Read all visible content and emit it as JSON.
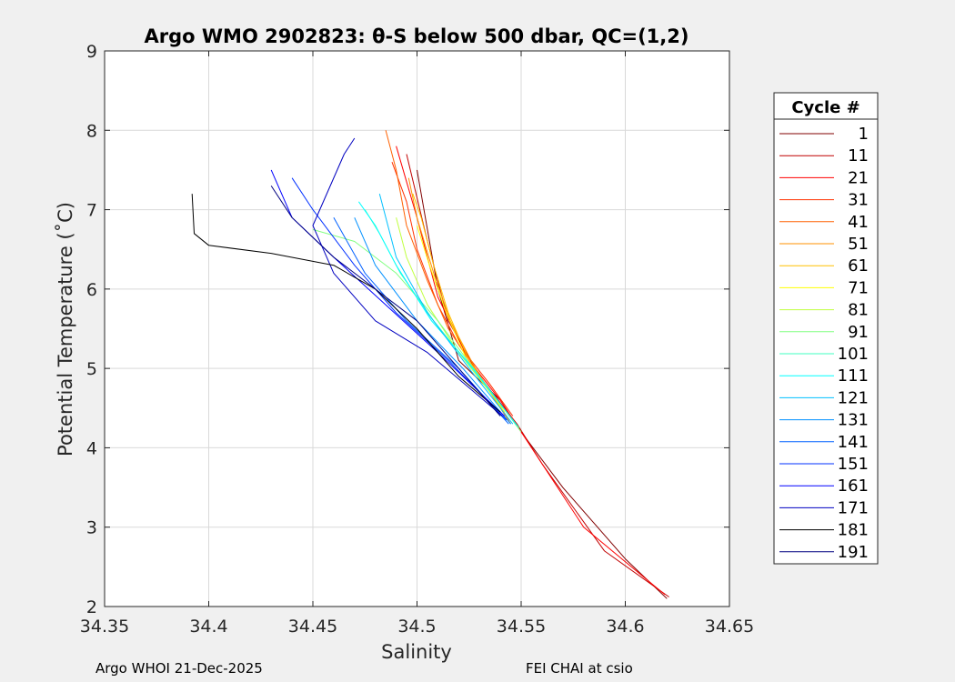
{
  "chart_data": {
    "type": "line",
    "title": "Argo WMO 2902823: θ-S below 500 dbar,  QC=(1,2)",
    "xlabel": "Salinity",
    "ylabel": "Potential Temperature (˚C)",
    "xlim": [
      34.35,
      34.65
    ],
    "ylim": [
      2,
      9
    ],
    "xticks": [
      "34.35",
      "34.4",
      "34.45",
      "34.5",
      "34.55",
      "34.6",
      "34.65"
    ],
    "yticks": [
      "2",
      "3",
      "4",
      "5",
      "6",
      "7",
      "8",
      "9"
    ],
    "grid": true,
    "legend_title": "Cycle #",
    "legend_position": "right",
    "series": [
      {
        "name": "1",
        "color": "#800000",
        "x": [
          34.62,
          34.6,
          34.57,
          34.55,
          34.54,
          34.52,
          34.51,
          34.5
        ],
        "y": [
          2.1,
          2.6,
          3.5,
          4.2,
          4.6,
          5.1,
          6.0,
          7.5
        ]
      },
      {
        "name": "11",
        "color": "#c00000",
        "x": [
          34.621,
          34.59,
          34.56,
          34.548,
          34.53,
          34.515,
          34.505,
          34.495
        ],
        "y": [
          2.12,
          2.7,
          3.8,
          4.3,
          4.9,
          5.6,
          6.6,
          7.7
        ]
      },
      {
        "name": "21",
        "color": "#ff0000",
        "x": [
          34.619,
          34.58,
          34.55,
          34.54,
          34.525,
          34.51,
          34.5,
          34.49
        ],
        "y": [
          2.15,
          3.0,
          4.2,
          4.6,
          5.1,
          5.9,
          6.9,
          7.8
        ]
      },
      {
        "name": "31",
        "color": "#ff3000",
        "x": [
          34.546,
          34.535,
          34.52,
          34.51,
          34.5,
          34.495,
          34.488
        ],
        "y": [
          4.4,
          4.8,
          5.3,
          5.8,
          6.5,
          7.1,
          7.6
        ]
      },
      {
        "name": "41",
        "color": "#ff6000",
        "x": [
          34.545,
          34.53,
          34.515,
          34.505,
          34.495,
          34.49,
          34.485
        ],
        "y": [
          4.3,
          4.9,
          5.5,
          6.1,
          6.8,
          7.5,
          8.0
        ]
      },
      {
        "name": "51",
        "color": "#ff9000",
        "x": [
          34.544,
          34.528,
          34.516,
          34.508,
          34.5,
          34.496
        ],
        "y": [
          4.35,
          5.0,
          5.6,
          6.2,
          6.9,
          7.4
        ]
      },
      {
        "name": "61",
        "color": "#ffc000",
        "x": [
          34.543,
          34.525,
          34.515,
          34.508,
          34.502,
          34.498
        ],
        "y": [
          4.4,
          5.1,
          5.7,
          6.3,
          6.9,
          7.2
        ]
      },
      {
        "name": "71",
        "color": "#ffff00",
        "x": [
          34.542,
          34.524,
          34.514,
          34.506,
          34.5
        ],
        "y": [
          4.45,
          5.1,
          5.7,
          6.3,
          6.8
        ]
      },
      {
        "name": "81",
        "color": "#c0ff40",
        "x": [
          34.541,
          34.52,
          34.505,
          34.495,
          34.49
        ],
        "y": [
          4.5,
          5.2,
          5.8,
          6.4,
          6.9
        ]
      },
      {
        "name": "91",
        "color": "#80ff80",
        "x": [
          34.55,
          34.53,
          34.51,
          34.49,
          34.47,
          34.45
        ],
        "y": [
          4.2,
          4.9,
          5.6,
          6.2,
          6.6,
          6.75
        ]
      },
      {
        "name": "101",
        "color": "#40ffc0",
        "x": [
          34.549,
          34.528,
          34.508,
          34.492,
          34.482,
          34.475
        ],
        "y": [
          4.25,
          4.95,
          5.6,
          6.2,
          6.7,
          7.0
        ]
      },
      {
        "name": "111",
        "color": "#00ffff",
        "x": [
          34.548,
          34.527,
          34.507,
          34.49,
          34.48,
          34.472
        ],
        "y": [
          4.28,
          5.0,
          5.6,
          6.3,
          6.8,
          7.1
        ]
      },
      {
        "name": "121",
        "color": "#00c0ff",
        "x": [
          34.546,
          34.525,
          34.505,
          34.49,
          34.482
        ],
        "y": [
          4.3,
          5.0,
          5.7,
          6.4,
          7.2
        ]
      },
      {
        "name": "131",
        "color": "#0090ff",
        "x": [
          34.545,
          34.522,
          34.5,
          34.48,
          34.47
        ],
        "y": [
          4.3,
          5.0,
          5.6,
          6.3,
          6.9
        ]
      },
      {
        "name": "141",
        "color": "#0060ff",
        "x": [
          34.544,
          34.52,
          34.495,
          34.475,
          34.46
        ],
        "y": [
          4.3,
          5.0,
          5.6,
          6.2,
          6.9
        ]
      },
      {
        "name": "151",
        "color": "#0030ff",
        "x": [
          34.543,
          34.515,
          34.49,
          34.47,
          34.45,
          34.44
        ],
        "y": [
          4.35,
          5.1,
          5.7,
          6.3,
          7.0,
          7.4
        ]
      },
      {
        "name": "161",
        "color": "#0000ff",
        "x": [
          34.542,
          34.51,
          34.485,
          34.46,
          34.44,
          34.43
        ],
        "y": [
          4.4,
          5.2,
          5.8,
          6.4,
          6.9,
          7.5
        ]
      },
      {
        "name": "171",
        "color": "#0000c0",
        "x": [
          34.541,
          34.505,
          34.48,
          34.46,
          34.45,
          34.465,
          34.47
        ],
        "y": [
          4.4,
          5.2,
          5.6,
          6.2,
          6.8,
          7.7,
          7.9
        ]
      },
      {
        "name": "181",
        "color": "#000000",
        "x": [
          34.54,
          34.52,
          34.5,
          34.48,
          34.46,
          34.43,
          34.4,
          34.393,
          34.392
        ],
        "y": [
          4.45,
          4.9,
          5.5,
          6.0,
          6.3,
          6.45,
          6.55,
          6.7,
          7.2
        ]
      },
      {
        "name": "191",
        "color": "#000080",
        "x": [
          34.54,
          34.52,
          34.5,
          34.48,
          34.46,
          34.44,
          34.43
        ],
        "y": [
          4.4,
          5.0,
          5.6,
          6.0,
          6.4,
          6.9,
          7.3
        ]
      }
    ]
  },
  "footer": {
    "left": "Argo WHOI 21-Dec-2025",
    "right": "FEI CHAI at csio"
  }
}
